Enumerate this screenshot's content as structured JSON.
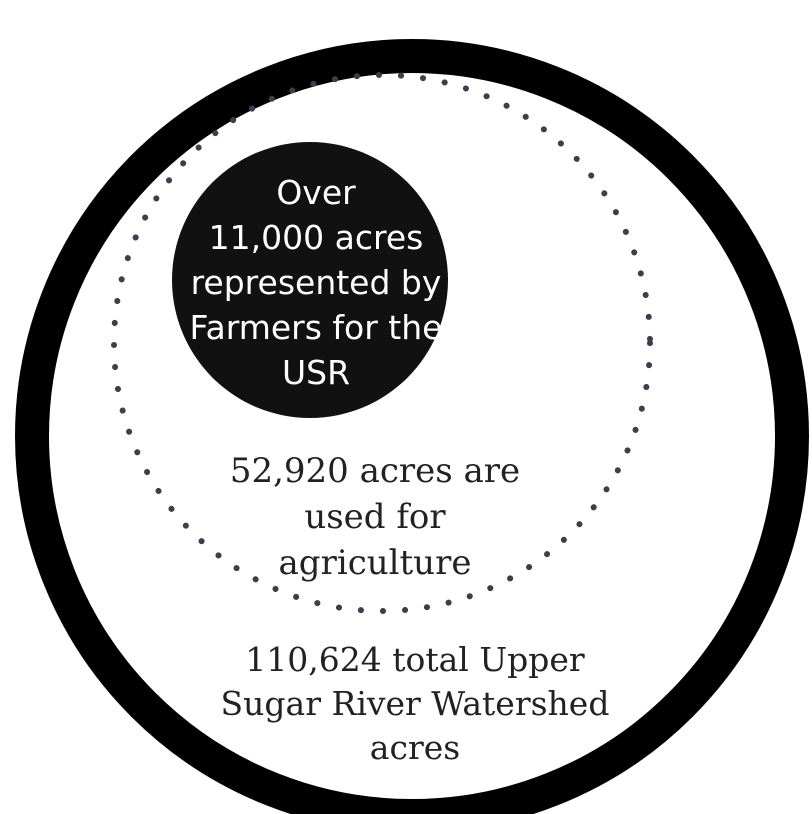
{
  "colors": {
    "outer_ring": "#000000",
    "dotted_ring": "#3a3f4b",
    "inner_disc": "#111111",
    "inner_text": "#ffffff",
    "label_text": "#222222"
  },
  "circles": {
    "inner": {
      "lines": [
        "Over",
        "11,000 acres",
        "represented by",
        "Farmers for the",
        "USR"
      ]
    },
    "middle": {
      "lines": [
        "52,920 acres are",
        "used for",
        "agriculture"
      ]
    },
    "outer": {
      "lines": [
        "110,624 total Upper",
        "Sugar River Watershed",
        "acres"
      ]
    }
  }
}
